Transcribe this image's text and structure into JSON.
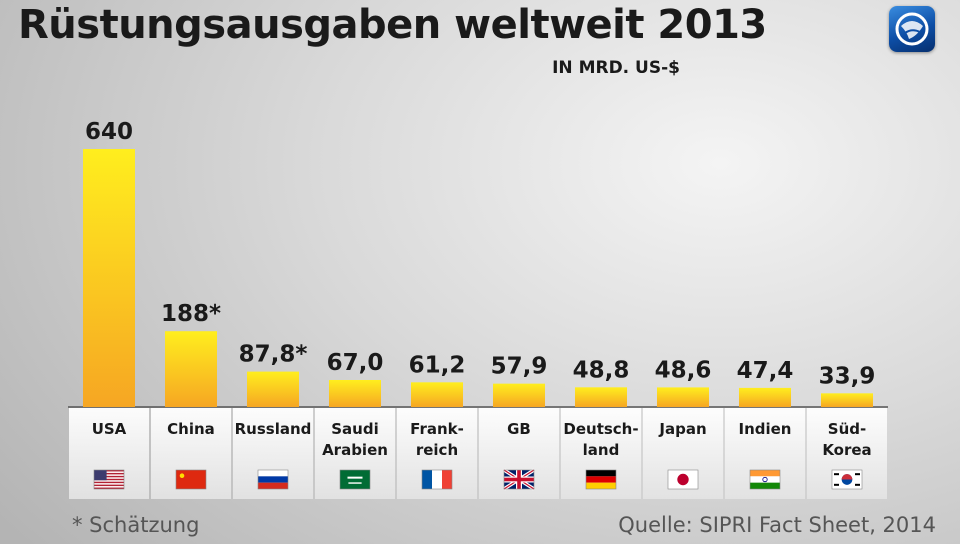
{
  "header": {
    "title": "Rüstungsausgaben weltweit 2013",
    "unit": "IN MRD. US-$"
  },
  "logo": {
    "icon": "tagesschau-logo-icon"
  },
  "chart_data": {
    "type": "bar",
    "title": "Rüstungsausgaben weltweit 2013",
    "ylabel": "IN MRD. US-$",
    "xlabel": "",
    "ylim": [
      0,
      640
    ],
    "grid": false,
    "bar_color_top": "#ffee1e",
    "bar_color_bottom": "#f6a623",
    "categories": [
      {
        "label": [
          "USA"
        ],
        "value": 640,
        "value_label": "640",
        "flag": "us-flag-icon"
      },
      {
        "label": [
          "China"
        ],
        "value": 188,
        "value_label": "188*",
        "flag": "china-flag-icon"
      },
      {
        "label": [
          "Russland"
        ],
        "value": 87.8,
        "value_label": "87,8*",
        "flag": "russia-flag-icon"
      },
      {
        "label": [
          "Saudi",
          "Arabien"
        ],
        "value": 67.0,
        "value_label": "67,0",
        "flag": "saudi-arabia-flag-icon"
      },
      {
        "label": [
          "Frank-",
          "reich"
        ],
        "value": 61.2,
        "value_label": "61,2",
        "flag": "france-flag-icon"
      },
      {
        "label": [
          "GB"
        ],
        "value": 57.9,
        "value_label": "57,9",
        "flag": "uk-flag-icon"
      },
      {
        "label": [
          "Deutsch-",
          "land"
        ],
        "value": 48.8,
        "value_label": "48,8",
        "flag": "germany-flag-icon"
      },
      {
        "label": [
          "Japan"
        ],
        "value": 48.6,
        "value_label": "48,6",
        "flag": "japan-flag-icon"
      },
      {
        "label": [
          "Indien"
        ],
        "value": 47.4,
        "value_label": "47,4",
        "flag": "india-flag-icon"
      },
      {
        "label": [
          "Süd-",
          "Korea"
        ],
        "value": 33.9,
        "value_label": "33,9",
        "flag": "south-korea-flag-icon"
      }
    ]
  },
  "footer": {
    "footnote": "*  Schätzung",
    "source": "Quelle: SIPRI Fact Sheet, 2014"
  }
}
